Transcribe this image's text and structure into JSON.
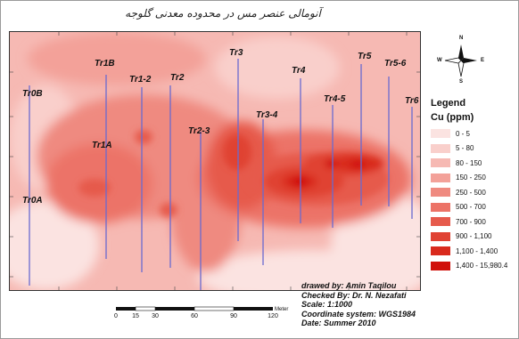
{
  "map": {
    "title": "آنومالی عنصر مس در محدوده معدنی گلوجه",
    "transects": [
      {
        "label": "Tr0B"
      },
      {
        "label": "Tr1B"
      },
      {
        "label": "Tr1-2"
      },
      {
        "label": "Tr2"
      },
      {
        "label": "Tr3"
      },
      {
        "label": "Tr4"
      },
      {
        "label": "Tr5"
      },
      {
        "label": "Tr5-6"
      },
      {
        "label": "Tr1A"
      },
      {
        "label": "Tr2-3"
      },
      {
        "label": "Tr3-4"
      },
      {
        "label": "Tr4-5"
      },
      {
        "label": "Tr6"
      },
      {
        "label": "Tr0A"
      }
    ]
  },
  "legend": {
    "title": "Legend",
    "subtitle": "Cu (ppm)",
    "classes": [
      {
        "label": "0 - 5",
        "color": "#fbe3e1"
      },
      {
        "label": "5 - 80",
        "color": "#f9cfcb"
      },
      {
        "label": "80 - 150",
        "color": "#f6b9b3"
      },
      {
        "label": "150 - 250",
        "color": "#f3a199"
      },
      {
        "label": "250 - 500",
        "color": "#ef8a80"
      },
      {
        "label": "500 - 700",
        "color": "#ec7367"
      },
      {
        "label": "700 - 900",
        "color": "#e65a4c"
      },
      {
        "label": "900 - 1,100",
        "color": "#e04233"
      },
      {
        "label": "1,100 - 1,400",
        "color": "#d92a1d"
      },
      {
        "label": "1,400 - 15,980.4",
        "color": "#d0100a"
      }
    ]
  },
  "north_arrow": {
    "n": "N",
    "s": "S",
    "e": "E",
    "w": "W"
  },
  "credits": {
    "drawn_by": "drawed by: Amin Taqilou",
    "checked_by": "Checked By: Dr. N. Nezafati",
    "scale": "Scale: 1:1000",
    "coord": "Coordinate system: WGS1984",
    "date": "Date: Summer 2010"
  },
  "scalebar": {
    "ticks": [
      "0",
      "15",
      "30",
      "60",
      "90",
      "120"
    ],
    "unit": "Meter"
  }
}
